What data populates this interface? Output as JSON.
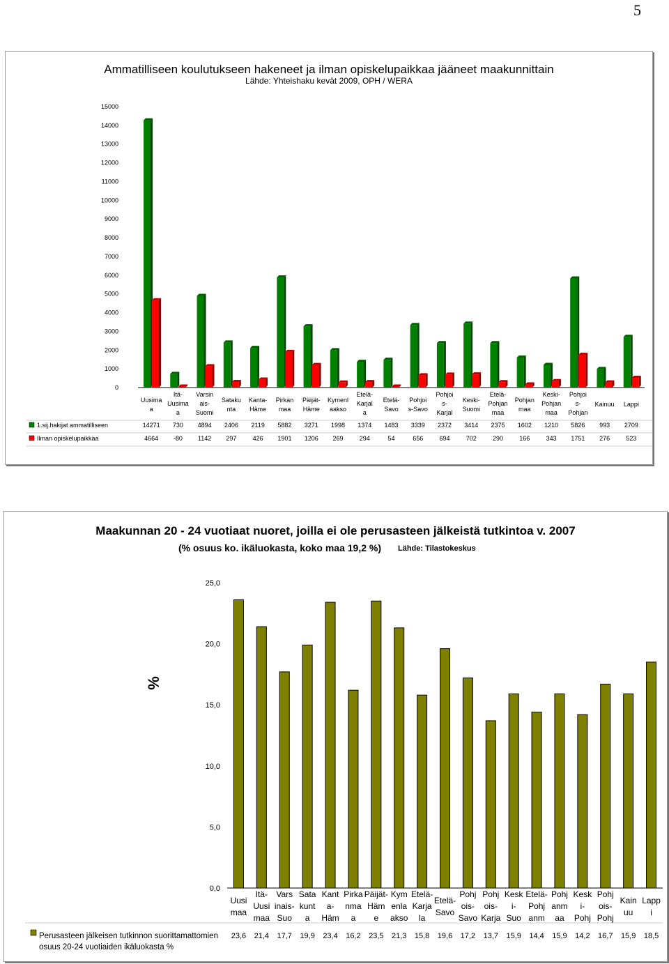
{
  "page_number": "5",
  "chart_data": [
    {
      "type": "bar",
      "title": "Ammatilliseen koulutukseen hakeneet ja ilman opiskelupaikkaa jääneet maakunnittain",
      "subtitle": "Lähde: Yhteishaku kevät 2009, OPH / WERA",
      "categories": [
        [
          "Uusima",
          "a"
        ],
        [
          "Itä-",
          "Uusima",
          "a"
        ],
        [
          "Varsin",
          "ais-",
          "Suomi"
        ],
        [
          "Sataku",
          "nta"
        ],
        [
          "Kanta-",
          "Häme"
        ],
        [
          "Pirkan",
          "maa"
        ],
        [
          "Päijät-",
          "Häme"
        ],
        [
          "Kymenl",
          "aakso"
        ],
        [
          "Etelä-",
          "Karjal",
          "a"
        ],
        [
          "Etelä-",
          "Savo"
        ],
        [
          "Pohjoi",
          "s-Savo"
        ],
        [
          "Pohjoi",
          "s-",
          "Karjal"
        ],
        [
          "Keski-",
          "Suomi"
        ],
        [
          "Etelä-",
          "Pohjan",
          "maa"
        ],
        [
          "Pohjan",
          "maa"
        ],
        [
          "Keski-",
          "Pohjan",
          "maa"
        ],
        [
          "Pohjoi",
          "s-",
          "Pohjan"
        ],
        [
          "Kainuu"
        ],
        [
          "Lappi"
        ]
      ],
      "series": [
        {
          "name": "1.sij.hakijat ammatilliseen",
          "color": "#008000",
          "values": [
            14271,
            730,
            4894,
            2406,
            2119,
            5882,
            3271,
            1998,
            1374,
            1483,
            3339,
            2372,
            3414,
            2375,
            1602,
            1210,
            5826,
            993,
            2709
          ]
        },
        {
          "name": "Ilman opiskelupaikkaa",
          "color": "#ff0000",
          "values": [
            4664,
            -80,
            1142,
            297,
            426,
            1901,
            1206,
            269,
            294,
            54,
            656,
            694,
            702,
            290,
            166,
            343,
            1751,
            276,
            523
          ]
        }
      ],
      "ylim": [
        0,
        15000
      ],
      "yticks": [
        "15000",
        "14000",
        "13000",
        "12000",
        "11000",
        "10000",
        "9000",
        "8000",
        "7000",
        "6000",
        "5000",
        "4000",
        "3000",
        "2000",
        "1000",
        "0"
      ],
      "table": true
    },
    {
      "type": "bar",
      "title": "Maakunnan 20 - 24 vuotiaat nuoret, joilla ei ole perusasteen jälkeistä tutkintoa v. 2007",
      "subtitle": "(% osuus ko. ikäluokasta, koko maa 19,2 %)",
      "source": "Lähde: Tilastokeskus",
      "ylabel": "%",
      "categories": [
        [
          "Uusi",
          "maa"
        ],
        [
          "Itä-",
          "Uusi",
          "maa"
        ],
        [
          "Vars",
          "inais-",
          "Suo"
        ],
        [
          "Sata",
          "kunt",
          "a"
        ],
        [
          "Kant",
          "a-",
          "Häm"
        ],
        [
          "Pirka",
          "nma",
          "a"
        ],
        [
          "Päijät-",
          "Häm",
          "e"
        ],
        [
          "Kym",
          "enla",
          "akso"
        ],
        [
          "Etelä-",
          "Karja",
          "la"
        ],
        [
          "Etelä-",
          "Savo"
        ],
        [
          "Pohj",
          "ois-",
          "Savo"
        ],
        [
          "Pohj",
          "ois-",
          "Karja"
        ],
        [
          "Kesk",
          "i-",
          "Suo"
        ],
        [
          "Etelä-",
          "Pohj",
          "anm"
        ],
        [
          "Pohj",
          "anm",
          "aa"
        ],
        [
          "Kesk",
          "i-",
          "Pohj"
        ],
        [
          "Pohj",
          "ois-",
          "Pohj"
        ],
        [
          "Kain",
          "uu"
        ],
        [
          "Lapp",
          "i"
        ]
      ],
      "series": [
        {
          "name": "Perusasteen jälkeisen tutkinnon suorittamattomien osuus 20-24 vuotiaiden ikäluokasta %",
          "color": "#808000",
          "values": [
            23.6,
            21.4,
            17.7,
            19.9,
            23.4,
            16.2,
            23.5,
            21.3,
            15.8,
            19.6,
            17.2,
            13.7,
            15.9,
            14.4,
            15.9,
            14.2,
            16.7,
            15.9,
            18.5
          ],
          "labels": [
            "23,6",
            "21,4",
            "17,7",
            "19,9",
            "23,4",
            "16,2",
            "23,5",
            "21,3",
            "15,8",
            "19,6",
            "17,2",
            "13,7",
            "15,9",
            "14,4",
            "15,9",
            "14,2",
            "16,7",
            "15,9",
            "18,5"
          ]
        }
      ],
      "legend_lines": [
        "Perusasteen jälkeisen tutkinnon suorittamattomien",
        "osuus 20-24 vuotiaiden ikäluokasta %"
      ],
      "ylim": [
        0,
        25
      ],
      "yticks": [
        "25,0",
        "20,0",
        "15,0",
        "10,0",
        "5,0",
        "0,0"
      ]
    }
  ]
}
